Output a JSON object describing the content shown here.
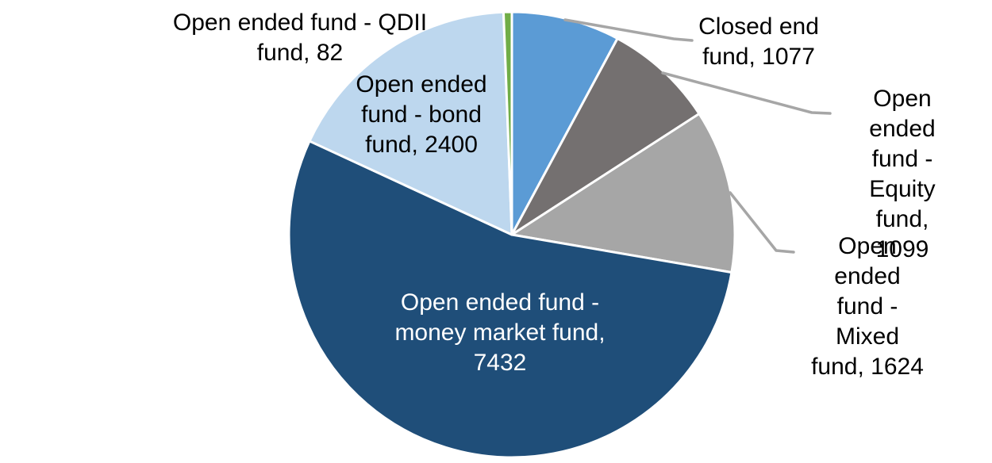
{
  "chart_data": {
    "type": "pie",
    "title": "",
    "legend": "none",
    "background": "#FFFFFF",
    "slice_border_color": "#FFFFFF",
    "leader_line_color": "#A6A6A6",
    "direction": "clockwise",
    "start_angle_deg": 0,
    "total": 13714,
    "slices": [
      {
        "id": "closed-end-fund",
        "name": "Closed end fund",
        "value": 1077,
        "color": "#5B9BD5",
        "label": "Closed end\nfund, 1077",
        "label_color": "#000000",
        "label_placement": "outside-callout"
      },
      {
        "id": "equity-fund",
        "name": "Open ended fund - Equity fund",
        "value": 1099,
        "color": "#747070",
        "label": "Open ended\nfund - Equity\nfund, 1099",
        "label_color": "#000000",
        "label_placement": "outside-callout"
      },
      {
        "id": "mixed-fund",
        "name": "Open ended fund - Mixed fund",
        "value": 1624,
        "color": "#A6A6A6",
        "label": "Open ended\nfund - Mixed\nfund, 1624",
        "label_color": "#000000",
        "label_placement": "outside-callout"
      },
      {
        "id": "money-market-fund",
        "name": "Open ended fund - money market fund",
        "value": 7432,
        "color": "#1F4E79",
        "label": "Open ended fund -\nmoney market fund,\n7432",
        "label_color": "#FFFFFF",
        "label_placement": "inside"
      },
      {
        "id": "bond-fund",
        "name": "Open ended fund - bond fund",
        "value": 2400,
        "color": "#BDD7EE",
        "label": "Open ended\nfund - bond\nfund, 2400",
        "label_color": "#000000",
        "label_placement": "outside"
      },
      {
        "id": "qdii-fund",
        "name": "Open ended fund - QDII fund",
        "value": 82,
        "color": "#70AD47",
        "label": "Open ended fund - QDII\nfund, 82",
        "label_color": "#000000",
        "label_placement": "outside"
      }
    ]
  }
}
